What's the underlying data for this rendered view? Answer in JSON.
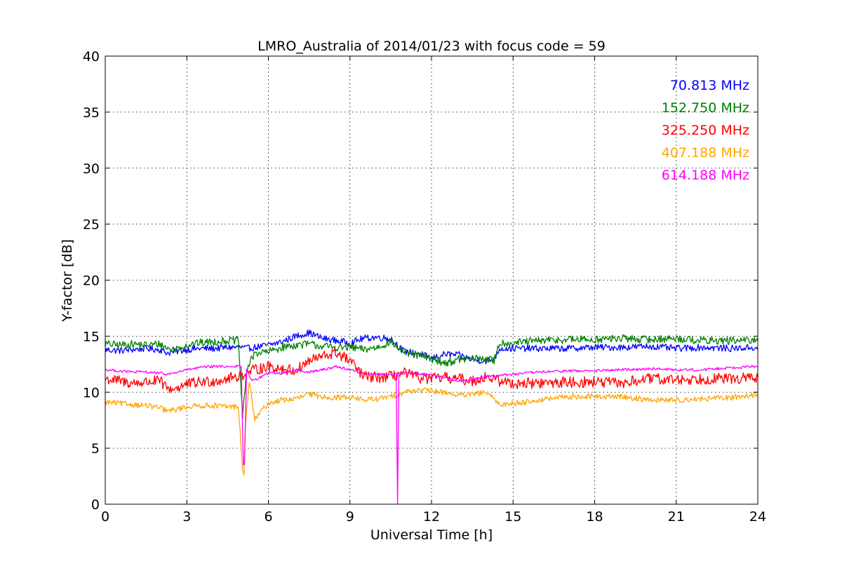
{
  "chart_data": {
    "type": "line",
    "title": "LMRO_Australia of 2014/01/23 with focus code = 59",
    "xlabel": "Universal Time [h]",
    "ylabel": "Y-factor [dB]",
    "xlim": [
      0,
      24
    ],
    "ylim": [
      0,
      40
    ],
    "xticks": [
      "0",
      "3",
      "6",
      "9",
      "12",
      "15",
      "18",
      "21",
      "24"
    ],
    "yticks": [
      "0",
      "5",
      "10",
      "15",
      "20",
      "25",
      "30",
      "35",
      "40"
    ],
    "grid": true,
    "legend_placement": "top-right",
    "series": [
      {
        "name": "70.813 MHz",
        "color": "#0000ff",
        "noise": 0.3,
        "x": [
          0,
          0.5,
          1,
          1.5,
          2,
          2.3,
          2.5,
          3,
          3.5,
          4,
          4.5,
          5,
          5.2,
          5.5,
          6,
          6.5,
          7,
          7.5,
          8,
          8.5,
          9,
          9.5,
          10,
          10.5,
          11,
          11.5,
          12,
          12.5,
          13,
          13.5,
          14,
          14.3,
          14.5,
          15,
          16,
          17,
          18,
          19,
          20,
          21,
          22,
          23,
          24
        ],
        "y": [
          13.8,
          13.7,
          13.8,
          13.9,
          13.8,
          13.5,
          13.6,
          13.8,
          13.9,
          13.9,
          14.0,
          14.0,
          13.9,
          14.0,
          14.2,
          14.5,
          15.0,
          15.3,
          14.8,
          14.6,
          14.4,
          14.8,
          14.9,
          14.8,
          13.6,
          13.5,
          13.0,
          13.4,
          13.3,
          12.9,
          12.8,
          12.9,
          13.9,
          13.9,
          13.9,
          13.9,
          14.0,
          14.0,
          14.1,
          13.9,
          14.0,
          13.9,
          14.0
        ]
      },
      {
        "name": "152.750 MHz",
        "color": "#008000",
        "noise": 0.35,
        "x": [
          0,
          0.5,
          1,
          1.5,
          2,
          2.3,
          2.5,
          3,
          3.5,
          4,
          4.5,
          4.9,
          5.0,
          5.05,
          5.2,
          5.5,
          6,
          6.5,
          7,
          7.5,
          8,
          8.5,
          9,
          9.5,
          10,
          10.5,
          11,
          11.5,
          12,
          12.5,
          13,
          13.5,
          14,
          14.3,
          14.5,
          15,
          16,
          17,
          18,
          19,
          20,
          21,
          22,
          23,
          24
        ],
        "y": [
          14.3,
          14.2,
          14.3,
          14.2,
          14.3,
          13.9,
          13.8,
          14.2,
          14.4,
          14.5,
          14.6,
          14.6,
          10.0,
          7.8,
          12.0,
          13.5,
          13.6,
          14.0,
          14.2,
          14.3,
          14.1,
          14.0,
          14.0,
          13.8,
          14.0,
          14.5,
          13.5,
          13.3,
          13.0,
          12.6,
          12.9,
          13.0,
          13.0,
          12.8,
          14.4,
          14.4,
          14.6,
          14.7,
          14.7,
          14.8,
          14.7,
          14.8,
          14.6,
          14.6,
          14.6
        ]
      },
      {
        "name": "325.250 MHz",
        "color": "#ff0000",
        "noise": 0.5,
        "x": [
          0,
          0.5,
          1,
          1.5,
          2,
          2.3,
          2.5,
          3,
          3.5,
          4,
          4.5,
          5,
          5.5,
          6,
          6.5,
          7,
          7.5,
          8,
          8.5,
          9,
          9.5,
          10,
          10.5,
          11,
          11.5,
          12,
          12.5,
          13,
          13.5,
          14,
          14.5,
          15,
          16,
          17,
          18,
          19,
          20,
          21,
          22,
          23,
          24
        ],
        "y": [
          11.2,
          11.0,
          10.8,
          10.9,
          11.0,
          10.3,
          10.3,
          10.7,
          10.9,
          11.0,
          11.2,
          11.5,
          12.0,
          12.3,
          12.1,
          11.9,
          12.8,
          13.2,
          13.5,
          12.8,
          11.4,
          11.3,
          11.4,
          11.7,
          11.3,
          11.2,
          11.3,
          11.2,
          11.0,
          11.4,
          11.0,
          10.8,
          10.8,
          10.9,
          10.9,
          10.8,
          11.2,
          11.1,
          11.2,
          11.2,
          11.3
        ]
      },
      {
        "name": "407.188 MHz",
        "color": "#ffa500",
        "noise": 0.25,
        "x": [
          0,
          0.5,
          1,
          1.5,
          2,
          2.3,
          2.5,
          3,
          3.5,
          4,
          4.5,
          4.9,
          5.05,
          5.1,
          5.15,
          5.3,
          5.5,
          5.8,
          6,
          6.5,
          7,
          7.5,
          8,
          8.5,
          9,
          9.5,
          10,
          10.5,
          11,
          11.5,
          12,
          12.5,
          13,
          13.5,
          14,
          14.5,
          15,
          16,
          17,
          18,
          19,
          20,
          21,
          22,
          23,
          24
        ],
        "y": [
          9.1,
          9.0,
          8.9,
          8.8,
          8.6,
          8.3,
          8.4,
          8.7,
          8.8,
          8.8,
          8.7,
          8.7,
          3.0,
          2.8,
          7.0,
          11.0,
          7.5,
          8.5,
          9.0,
          9.3,
          9.4,
          9.8,
          9.6,
          9.5,
          9.6,
          9.3,
          9.4,
          9.6,
          10.0,
          10.2,
          10.1,
          10.0,
          9.7,
          9.8,
          10.0,
          8.9,
          9.0,
          9.3,
          9.6,
          9.6,
          9.6,
          9.3,
          9.3,
          9.4,
          9.5,
          9.8
        ]
      },
      {
        "name": "614.188 MHz",
        "color": "#ff00ff",
        "noise": 0.12,
        "x": [
          0,
          0.5,
          1,
          1.5,
          2,
          2.3,
          2.5,
          3,
          3.5,
          4,
          4.5,
          5.0,
          5.08,
          5.12,
          5.2,
          5.4,
          5.6,
          6,
          6.5,
          7,
          7.5,
          8,
          8.5,
          9,
          9.5,
          10,
          10.5,
          10.7,
          10.75,
          10.8,
          11,
          11.5,
          12,
          12.5,
          13,
          13.5,
          14,
          14.5,
          15,
          16,
          17,
          18,
          19,
          20,
          21,
          22,
          23,
          24
        ],
        "y": [
          12.0,
          11.9,
          11.8,
          11.8,
          11.7,
          11.6,
          11.7,
          12.0,
          12.2,
          12.3,
          12.3,
          12.3,
          3.4,
          3.5,
          12.0,
          11.0,
          11.2,
          11.7,
          11.7,
          12.0,
          11.8,
          12.0,
          12.3,
          12.0,
          11.7,
          11.6,
          11.6,
          11.6,
          0.1,
          11.6,
          11.7,
          11.7,
          11.5,
          11.3,
          11.0,
          11.1,
          11.4,
          11.5,
          11.6,
          11.8,
          11.9,
          11.9,
          12.0,
          12.1,
          12.0,
          12.0,
          12.2,
          12.3
        ]
      }
    ]
  }
}
